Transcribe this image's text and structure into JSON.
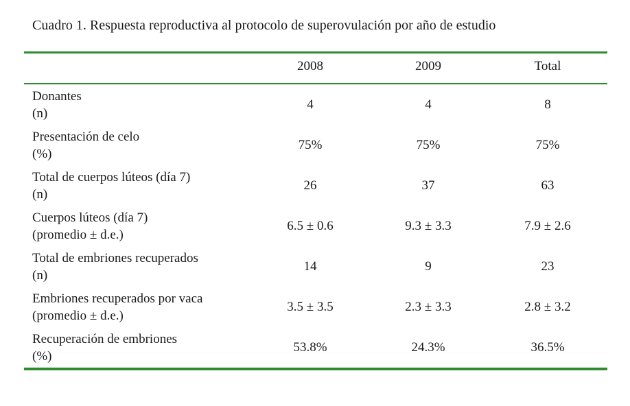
{
  "caption": "Cuadro 1.  Respuesta reproductiva al protocolo de superovulación por año de estudio",
  "columns": [
    "2008",
    "2009",
    "Total"
  ],
  "rows": [
    {
      "label1": "Donantes",
      "label2": "(n)",
      "values": [
        "4",
        "4",
        "8"
      ]
    },
    {
      "label1": "Presentación de celo",
      "label2": "(%)",
      "values": [
        "75%",
        "75%",
        "75%"
      ]
    },
    {
      "label1": "Total de cuerpos lúteos (día 7)",
      "label2": "(n)",
      "values": [
        "26",
        "37",
        "63"
      ]
    },
    {
      "label1": "Cuerpos lúteos (día 7)",
      "label2": "(promedio ± d.e.)",
      "values": [
        "6.5 ± 0.6",
        "9.3 ± 3.3",
        "7.9 ± 2.6"
      ]
    },
    {
      "label1": "Total de embriones recuperados",
      "label2": "(n)",
      "values": [
        "14",
        "9",
        "23"
      ]
    },
    {
      "label1": "Embriones recuperados por vaca",
      "label2": "(promedio ± d.e.)",
      "values": [
        "3.5 ± 3.5",
        "2.3 ± 3.3",
        "2.8 ± 3.2"
      ]
    },
    {
      "label1": "Recuperación de embriones",
      "label2": "(%)",
      "values": [
        "53.8%",
        "24.3%",
        "36.5%"
      ]
    }
  ],
  "colors": {
    "rule": "#2e8b2e",
    "text": "#1a1a1a"
  }
}
